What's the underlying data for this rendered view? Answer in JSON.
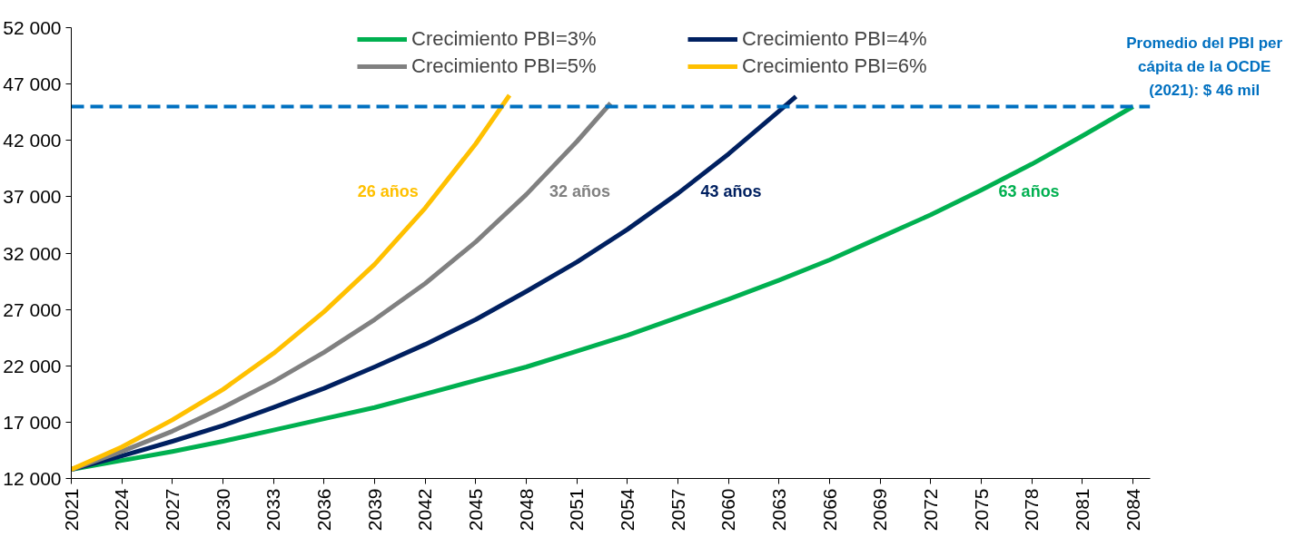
{
  "chart_data": {
    "type": "line",
    "series": [
      {
        "name": "Crecimiento PBI=3%",
        "color": "#00b050",
        "x": [
          2021,
          2024,
          2027,
          2030,
          2033,
          2036,
          2039,
          2042,
          2045,
          2048,
          2051,
          2054,
          2057,
          2060,
          2063,
          2066,
          2069,
          2072,
          2075,
          2078,
          2081,
          2084
        ],
        "values": [
          12800,
          13600,
          14400,
          15300,
          16300,
          17300,
          18300,
          19500,
          20700,
          21900,
          23300,
          24700,
          26300,
          27900,
          29600,
          31400,
          33400,
          35400,
          37600,
          39900,
          42400,
          45000
        ]
      },
      {
        "name": "Crecimiento PBI=4%",
        "color": "#002060",
        "x": [
          2021,
          2024,
          2027,
          2030,
          2033,
          2036,
          2039,
          2042,
          2045,
          2048,
          2051,
          2054,
          2057,
          2060,
          2063,
          2064
        ],
        "values": [
          12800,
          14000,
          15300,
          16700,
          18300,
          20000,
          21900,
          23900,
          26100,
          28600,
          31200,
          34100,
          37300,
          40800,
          44600,
          45900
        ]
      },
      {
        "name": "Crecimiento PBI=5%",
        "color": "#808080",
        "x": [
          2021,
          2024,
          2027,
          2030,
          2033,
          2036,
          2039,
          2042,
          2045,
          2048,
          2051,
          2053
        ],
        "values": [
          12800,
          14400,
          16200,
          18300,
          20600,
          23200,
          26100,
          29300,
          33000,
          37200,
          41900,
          45300
        ]
      },
      {
        "name": "Crecimiento PBI=6%",
        "color": "#ffc000",
        "x": [
          2021,
          2024,
          2027,
          2030,
          2033,
          2036,
          2039,
          2042,
          2045,
          2047
        ],
        "values": [
          12800,
          14800,
          17200,
          19900,
          23100,
          26800,
          31000,
          36000,
          41700,
          46000
        ]
      }
    ],
    "annotations": [
      "63 años",
      "43 años",
      "32 años",
      "26 años"
    ],
    "ref_lines": [
      {
        "axis": "y",
        "value": 45000,
        "label": "Promedio del PBI per cápita de la OCDE (2021): $ 46 mil",
        "color": "#0070c0",
        "line_style": "dashed"
      }
    ],
    "xlim": [
      2021,
      2085
    ],
    "xticks": [
      2021,
      2024,
      2027,
      2030,
      2033,
      2036,
      2039,
      2042,
      2045,
      2048,
      2051,
      2054,
      2057,
      2060,
      2063,
      2066,
      2069,
      2072,
      2075,
      2078,
      2081,
      2084
    ],
    "ylim": [
      12000,
      52000
    ],
    "yticks": [
      {
        "value": 12000,
        "label": "12 000"
      },
      {
        "value": 17000,
        "label": "17 000"
      },
      {
        "value": 22000,
        "label": "22 000"
      },
      {
        "value": 27000,
        "label": "27 000"
      },
      {
        "value": 32000,
        "label": "32 000"
      },
      {
        "value": 37000,
        "label": "37 000"
      },
      {
        "value": 42000,
        "label": "42 000"
      },
      {
        "value": 47000,
        "label": "47 000"
      },
      {
        "value": 52000,
        "label": "52 000"
      }
    ],
    "grid": false,
    "legend": "top",
    "marker": "none",
    "line_style": "solid"
  }
}
